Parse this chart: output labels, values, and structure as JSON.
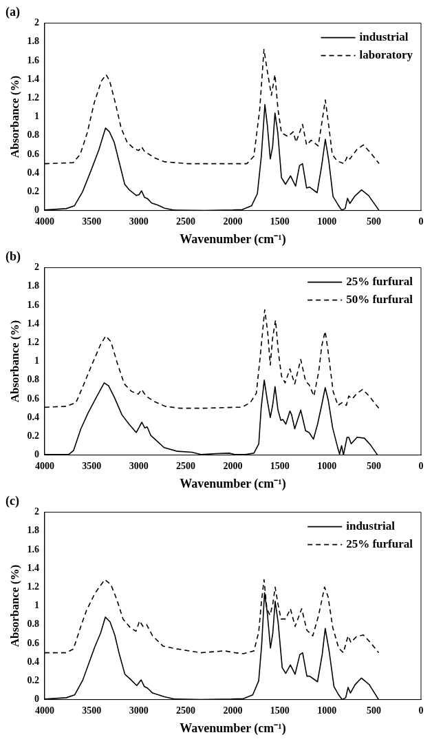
{
  "chart_data": [
    {
      "type": "line",
      "title": "(a)",
      "xlabel": "Wavenumber (cm⁻¹)",
      "ylabel": "Absorbance (%)",
      "xlim": [
        4000,
        0
      ],
      "xticks": [
        4000,
        3500,
        3000,
        2500,
        2000,
        1500,
        1000,
        500,
        0
      ],
      "ylim": [
        0,
        2
      ],
      "yticks": [
        0,
        0.2,
        0.4,
        0.6,
        0.8,
        1,
        1.2,
        1.4,
        1.6,
        1.8,
        2
      ],
      "legend": "top right",
      "series": [
        {
          "name": "industrial",
          "color": "#000000",
          "line_style": "solid",
          "x": [
            4000,
            3771,
            3684,
            3597,
            3498,
            3423,
            3353,
            3311,
            3261,
            3211,
            3149,
            3100,
            3025,
            2995,
            2970,
            2938,
            2905,
            2863,
            2801,
            2726,
            2627,
            2300,
            2000,
            1900,
            1801,
            1739,
            1697,
            1659,
            1632,
            1602,
            1577,
            1552,
            1522,
            1483,
            1440,
            1386,
            1333,
            1291,
            1259,
            1216,
            1184,
            1104,
            1055,
            1017,
            980,
            935,
            881,
            843,
            806,
            781,
            756,
            706,
            632,
            557,
            445
          ],
          "values": [
            0.005,
            0.02,
            0.05,
            0.2,
            0.45,
            0.65,
            0.88,
            0.84,
            0.73,
            0.53,
            0.28,
            0.22,
            0.16,
            0.17,
            0.21,
            0.14,
            0.125,
            0.08,
            0.06,
            0.025,
            0.005,
            0,
            0.005,
            0.01,
            0.05,
            0.18,
            0.58,
            1.13,
            0.9,
            0.55,
            0.68,
            1.04,
            0.83,
            0.35,
            0.28,
            0.37,
            0.26,
            0.48,
            0.5,
            0.24,
            0.25,
            0.19,
            0.48,
            0.76,
            0.53,
            0.15,
            0.06,
            0.005,
            0.02,
            0.13,
            0.075,
            0.15,
            0.22,
            0.16,
            0
          ]
        },
        {
          "name": "laboratory",
          "color": "#000000",
          "line_style": "dashed",
          "x": [
            4000,
            3697,
            3622,
            3547,
            3473,
            3398,
            3348,
            3311,
            3249,
            3187,
            3124,
            3050,
            3000,
            2970,
            2938,
            2826,
            2726,
            2478,
            1851,
            1776,
            1714,
            1669,
            1632,
            1590,
            1552,
            1520,
            1483,
            1415,
            1358,
            1328,
            1259,
            1216,
            1167,
            1092,
            1055,
            1017,
            980,
            943,
            893,
            818,
            781,
            756,
            682,
            612,
            532,
            445
          ],
          "values": [
            0.5,
            0.51,
            0.6,
            0.83,
            1.15,
            1.38,
            1.45,
            1.39,
            1.15,
            0.88,
            0.73,
            0.66,
            0.64,
            0.68,
            0.63,
            0.56,
            0.52,
            0.5,
            0.5,
            0.58,
            1.08,
            1.72,
            1.48,
            1.23,
            1.45,
            1.08,
            0.83,
            0.79,
            0.84,
            0.73,
            0.92,
            0.7,
            0.75,
            0.69,
            0.93,
            1.18,
            0.9,
            0.6,
            0.53,
            0.5,
            0.58,
            0.55,
            0.65,
            0.7,
            0.61,
            0.5
          ]
        }
      ]
    },
    {
      "type": "line",
      "title": "(b)",
      "xlabel": "Wavenumber (cm⁻¹)",
      "ylabel": "Absorbance (%)",
      "xlim": [
        4000,
        0
      ],
      "xticks": [
        4000,
        3500,
        3000,
        2500,
        2000,
        1500,
        1000,
        500,
        0
      ],
      "ylim": [
        0,
        2
      ],
      "yticks": [
        0,
        0.2,
        0.4,
        0.6,
        0.8,
        1,
        1.2,
        1.4,
        1.6,
        1.8,
        2
      ],
      "legend": "top right",
      "series": [
        {
          "name": "25% furfural",
          "color": "#000000",
          "line_style": "solid",
          "x": [
            4000,
            3744,
            3692,
            3615,
            3538,
            3449,
            3367,
            3321,
            3256,
            3179,
            3103,
            3026,
            2967,
            2936,
            2910,
            2872,
            2795,
            2731,
            2590,
            2436,
            2333,
            2179,
            2038,
            1974,
            1878,
            1776,
            1724,
            1699,
            1666,
            1633,
            1602,
            1577,
            1551,
            1520,
            1490,
            1469,
            1436,
            1393,
            1375,
            1342,
            1278,
            1227,
            1189,
            1143,
            1099,
            1056,
            1018,
            985,
            939,
            883,
            865,
            844,
            824,
            786,
            768,
            742,
            679,
            602,
            538,
            462
          ],
          "values": [
            0.005,
            0.005,
            0.05,
            0.28,
            0.45,
            0.62,
            0.77,
            0.74,
            0.61,
            0.43,
            0.33,
            0.24,
            0.35,
            0.29,
            0.3,
            0.21,
            0.14,
            0.08,
            0.04,
            0.03,
            0.005,
            0.015,
            0.02,
            0.005,
            0.005,
            0.02,
            0.12,
            0.5,
            0.8,
            0.58,
            0.4,
            0.53,
            0.73,
            0.48,
            0.37,
            0.38,
            0.33,
            0.47,
            0.43,
            0.28,
            0.48,
            0.26,
            0.24,
            0.17,
            0.33,
            0.53,
            0.72,
            0.58,
            0.29,
            0.07,
            0.01,
            0.1,
            0,
            0.19,
            0.19,
            0.12,
            0.19,
            0.18,
            0.11,
            0
          ]
        },
        {
          "name": "50% furfural",
          "color": "#000000",
          "line_style": "dashed",
          "x": [
            4000,
            3769,
            3667,
            3590,
            3500,
            3410,
            3351,
            3295,
            3231,
            3154,
            3077,
            3005,
            2969,
            2923,
            2833,
            2718,
            2564,
            2308,
            1974,
            1903,
            1814,
            1750,
            1712,
            1661,
            1630,
            1602,
            1577,
            1546,
            1515,
            1482,
            1444,
            1393,
            1342,
            1278,
            1227,
            1189,
            1138,
            1087,
            1054,
            1018,
            985,
            934,
            883,
            837,
            793,
            768,
            730,
            679,
            620,
            551,
            449
          ],
          "values": [
            0.51,
            0.52,
            0.56,
            0.74,
            0.96,
            1.17,
            1.27,
            1.21,
            0.99,
            0.76,
            0.68,
            0.65,
            0.7,
            0.63,
            0.57,
            0.52,
            0.5,
            0.5,
            0.51,
            0.51,
            0.56,
            0.66,
            1.02,
            1.55,
            1.32,
            0.96,
            1.25,
            1.44,
            1.09,
            0.84,
            0.77,
            0.92,
            0.76,
            1.02,
            0.79,
            0.75,
            0.63,
            0.89,
            1.17,
            1.32,
            1.09,
            0.68,
            0.53,
            0.56,
            0.53,
            0.63,
            0.6,
            0.66,
            0.7,
            0.63,
            0.5
          ]
        }
      ]
    },
    {
      "type": "line",
      "title": "(c)",
      "xlabel": "Wavenumber (cm⁻¹)",
      "ylabel": "Absorbance (%)",
      "xlim": [
        4000,
        0
      ],
      "xticks": [
        4000,
        3500,
        3000,
        2500,
        2000,
        1500,
        1000,
        500,
        0
      ],
      "ylim": [
        0,
        2
      ],
      "yticks": [
        0,
        0.2,
        0.4,
        0.6,
        0.8,
        1,
        1.2,
        1.4,
        1.6,
        1.8,
        2
      ],
      "legend": "top right",
      "series": [
        {
          "name": "industrial",
          "color": "#000000",
          "line_style": "solid",
          "x": [
            4000,
            3769,
            3681,
            3594,
            3468,
            3405,
            3355,
            3305,
            3255,
            3205,
            3147,
            3092,
            3021,
            2974,
            2941,
            2904,
            2853,
            2728,
            2615,
            2339,
            2013,
            1888,
            1788,
            1725,
            1693,
            1663,
            1633,
            1600,
            1575,
            1550,
            1518,
            1475,
            1438,
            1388,
            1338,
            1288,
            1258,
            1213,
            1183,
            1100,
            1050,
            1018,
            975,
            925,
            875,
            838,
            800,
            775,
            750,
            700,
            633,
            550,
            450
          ],
          "values": [
            0.005,
            0.02,
            0.05,
            0.21,
            0.56,
            0.71,
            0.88,
            0.83,
            0.69,
            0.48,
            0.27,
            0.22,
            0.15,
            0.21,
            0.14,
            0.12,
            0.07,
            0.03,
            0.005,
            0,
            0.005,
            0.01,
            0.05,
            0.2,
            0.59,
            1.14,
            0.92,
            0.55,
            0.71,
            1.05,
            0.82,
            0.34,
            0.28,
            0.37,
            0.27,
            0.48,
            0.5,
            0.25,
            0.25,
            0.19,
            0.48,
            0.76,
            0.51,
            0.14,
            0.05,
            0,
            0.02,
            0.13,
            0.07,
            0.16,
            0.23,
            0.16,
            0
          ]
        },
        {
          "name": "25% furfural",
          "color": "#000000",
          "line_style": "dashed",
          "x": [
            4000,
            3769,
            3694,
            3619,
            3556,
            3468,
            3405,
            3360,
            3297,
            3230,
            3167,
            3092,
            3029,
            2991,
            2954,
            2916,
            2853,
            2740,
            2590,
            2339,
            2088,
            1975,
            1888,
            1775,
            1725,
            1695,
            1668,
            1638,
            1605,
            1575,
            1550,
            1520,
            1488,
            1438,
            1388,
            1338,
            1268,
            1213,
            1150,
            1088,
            1025,
            988,
            938,
            875,
            825,
            775,
            745,
            688,
            613,
            538,
            450
          ],
          "values": [
            0.5,
            0.5,
            0.54,
            0.77,
            0.95,
            1.13,
            1.22,
            1.28,
            1.23,
            1.06,
            0.86,
            0.77,
            0.73,
            0.84,
            0.78,
            0.8,
            0.68,
            0.57,
            0.54,
            0.5,
            0.52,
            0.5,
            0.49,
            0.52,
            0.72,
            1.05,
            1.28,
            0.97,
            0.9,
            1.02,
            1.2,
            1.02,
            0.86,
            0.86,
            0.97,
            0.78,
            0.97,
            0.74,
            0.68,
            0.9,
            1.2,
            1.1,
            0.77,
            0.55,
            0.5,
            0.68,
            0.61,
            0.67,
            0.69,
            0.61,
            0.5
          ]
        }
      ]
    }
  ]
}
